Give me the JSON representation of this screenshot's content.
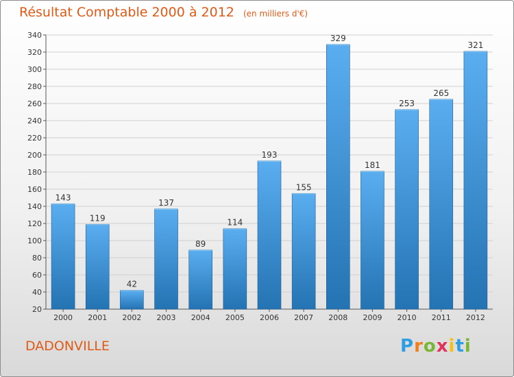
{
  "title": "Résultat Comptable 2000 à 2012",
  "subtitle": "(en milliers d'€)",
  "commune": "DADONVILLE",
  "logo": {
    "letters": [
      "P",
      "r",
      "o",
      "x",
      "i",
      "t",
      "i"
    ],
    "colors": [
      "#2f9ee0",
      "#f07f1e",
      "#7ab636",
      "#e0315b",
      "#f5c014",
      "#2f9ee0",
      "#7ab636"
    ]
  },
  "colors": {
    "bar_top": "#5aaef0",
    "bar_bottom": "#2473b3",
    "title": "#e05a16",
    "grid": "#d0d0d0",
    "axis": "#555555"
  },
  "chart_data": {
    "type": "bar",
    "categories": [
      "2000",
      "2001",
      "2002",
      "2003",
      "2004",
      "2005",
      "2006",
      "2007",
      "2008",
      "2009",
      "2010",
      "2011",
      "2012"
    ],
    "values": [
      143,
      119,
      42,
      137,
      89,
      114,
      193,
      155,
      329,
      181,
      253,
      265,
      321
    ],
    "data_labels": [
      "143",
      "119",
      "42",
      "137",
      "89",
      "114",
      "193",
      "155",
      "329",
      "181",
      "253",
      "265",
      "321"
    ],
    "ylim": [
      20,
      340
    ],
    "yticks": [
      20,
      40,
      60,
      80,
      100,
      120,
      140,
      160,
      180,
      200,
      220,
      240,
      260,
      280,
      300,
      320,
      340
    ],
    "grid": true,
    "title": "Résultat Comptable 2000 à 2012",
    "subtitle": "(en milliers d'€)",
    "xlabel": "",
    "ylabel": ""
  }
}
